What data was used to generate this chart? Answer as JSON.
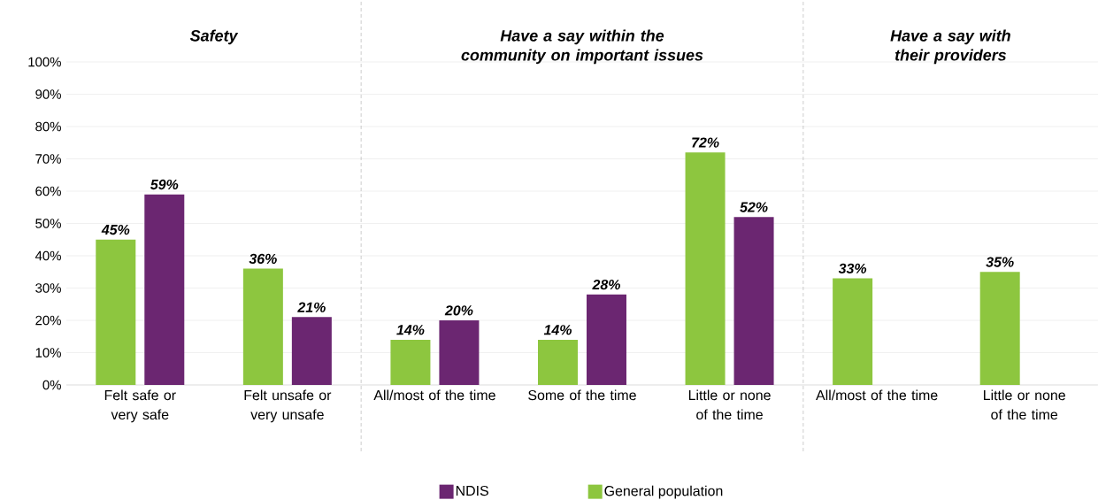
{
  "chart_data": {
    "type": "bar",
    "categories": [
      "Felt safe or very safe",
      "Felt unsafe or very unsafe",
      "All/most of the time",
      "Some of the time",
      "Little or none of the time",
      "All/most of the time",
      "Little or none of the time"
    ],
    "series": [
      {
        "name": "General population",
        "color": "#8dc63f",
        "values": [
          45,
          36,
          14,
          14,
          72,
          33,
          35
        ],
        "value_labels": [
          "45%",
          "36%",
          "14%",
          "14%",
          "72%",
          "33%",
          "35%"
        ]
      },
      {
        "name": "NDIS",
        "color": "#6b2671",
        "values": [
          59,
          21,
          20,
          28,
          52,
          null,
          null
        ],
        "value_labels": [
          "59%",
          "21%",
          "20%",
          "28%",
          "52%",
          null,
          null
        ]
      }
    ],
    "ylim": [
      0,
      100
    ],
    "yticks": [
      {
        "value": 0,
        "label": "0%"
      },
      {
        "value": 10,
        "label": "10%"
      },
      {
        "value": 20,
        "label": "20%"
      },
      {
        "value": 30,
        "label": "30%"
      },
      {
        "value": 40,
        "label": "40%"
      },
      {
        "value": 50,
        "label": "50%"
      },
      {
        "value": 60,
        "label": "60%"
      },
      {
        "value": 70,
        "label": "70%"
      },
      {
        "value": 80,
        "label": "80%"
      },
      {
        "value": 90,
        "label": "90%"
      },
      {
        "value": 100,
        "label": "100%"
      }
    ],
    "grid": "y",
    "legend": "bottom",
    "annotations": [
      "Safety",
      "Have a say within the community on important issues",
      "Have a say with their providers"
    ]
  }
}
